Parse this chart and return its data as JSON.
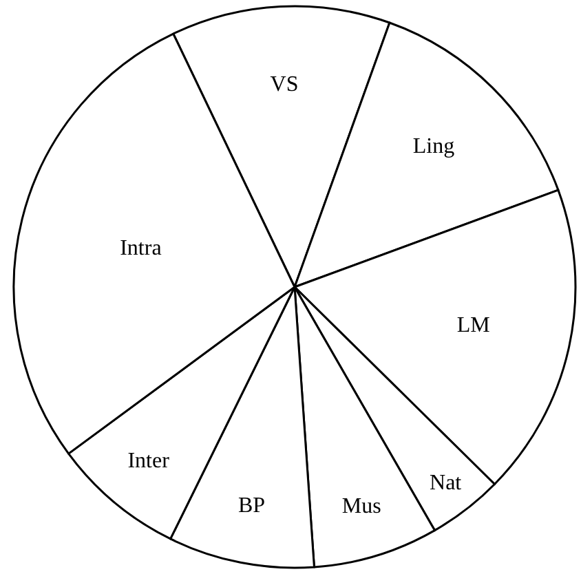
{
  "chart_data": {
    "type": "pie",
    "categories": [
      "VS",
      "Ling",
      "LM",
      "Nat",
      "Mus",
      "BP",
      "Inter",
      "Intra"
    ],
    "values": [
      12.6,
      13.9,
      18.0,
      4.3,
      7.2,
      8.4,
      7.6,
      28.0
    ],
    "colors": [
      "#ffffff",
      "#ffffff",
      "#ffffff",
      "#ffffff",
      "#ffffff",
      "#ffffff",
      "#ffffff",
      "#ffffff"
    ],
    "legend": false
  }
}
